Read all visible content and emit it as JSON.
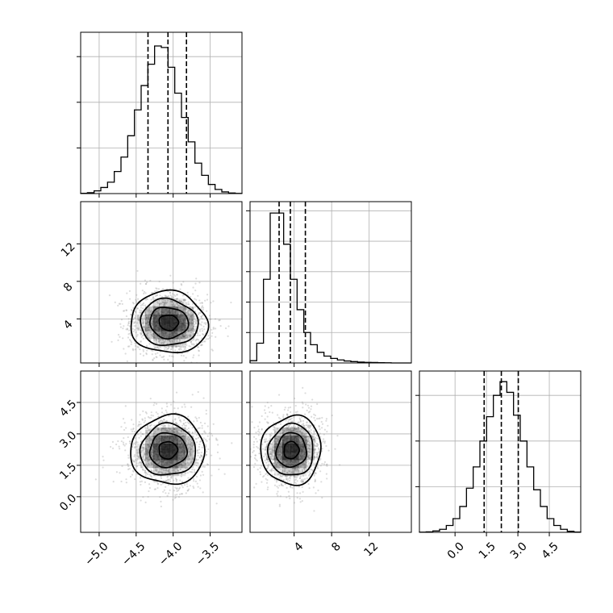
{
  "chart_data": {
    "type": "corner",
    "parameters": [
      {
        "range": [
          -5.25,
          -3.07
        ],
        "ticks": [
          -5.0,
          -4.5,
          -4.0,
          -3.5
        ],
        "tick_labels": [
          "−5.0",
          "−4.5",
          "−4.0",
          "−3.5"
        ],
        "quantiles": [
          -4.34,
          -4.07,
          -3.82
        ],
        "hist_bins": [
          0.002,
          0.006,
          0.018,
          0.04,
          0.075,
          0.145,
          0.24,
          0.38,
          0.55,
          0.71,
          0.85,
          0.97,
          0.96,
          0.83,
          0.66,
          0.5,
          0.34,
          0.2,
          0.12,
          0.06,
          0.027,
          0.011,
          0.004,
          0.001
        ],
        "hist_ymax": 1.06,
        "hist_ticks": [
          0.0,
          0.3,
          0.6,
          0.9
        ]
      },
      {
        "range": [
          -0.7,
          16.5
        ],
        "ticks": [
          4,
          8,
          12
        ],
        "tick_labels": [
          "4",
          "8",
          "12"
        ],
        "quantiles": [
          2.4,
          3.6,
          5.2
        ],
        "hist_bins": [
          0.015,
          0.13,
          0.55,
          0.985,
          0.985,
          0.78,
          0.55,
          0.35,
          0.2,
          0.12,
          0.07,
          0.045,
          0.03,
          0.02,
          0.013,
          0.009,
          0.006,
          0.004,
          0.003,
          0.002,
          0.001,
          0.0,
          0.0,
          0.0
        ],
        "hist_ymax": 1.06,
        "hist_ticks": [
          0.0,
          0.2,
          0.4,
          0.6,
          0.8,
          1.0
        ]
      },
      {
        "range": [
          -1.7,
          6.0
        ],
        "ticks": [
          0.0,
          1.5,
          3.0,
          4.5
        ],
        "tick_labels": [
          "0.0",
          "1.5",
          "3.0",
          "4.5"
        ],
        "quantiles": [
          1.39,
          2.21,
          3.02
        ],
        "hist_bins": [
          0.001,
          0.003,
          0.009,
          0.02,
          0.045,
          0.09,
          0.17,
          0.29,
          0.43,
          0.6,
          0.76,
          0.9,
          0.99,
          0.92,
          0.77,
          0.6,
          0.43,
          0.28,
          0.17,
          0.09,
          0.045,
          0.02,
          0.007,
          0.002
        ],
        "hist_ymax": 1.06,
        "hist_ticks": [
          0.0,
          0.3,
          0.6,
          0.9
        ]
      }
    ],
    "pairs": [
      {
        "x": 0,
        "y": 1,
        "center": [
          -4.06,
          3.6
        ],
        "sigma": [
          0.26,
          1.65
        ],
        "rho": -0.05
      },
      {
        "x": 0,
        "y": 2,
        "center": [
          -4.07,
          2.22
        ],
        "sigma": [
          0.25,
          0.82
        ],
        "rho": 0.02
      },
      {
        "x": 1,
        "y": 2,
        "center": [
          3.7,
          2.22
        ],
        "sigma": [
          1.6,
          0.82
        ],
        "rho": 0.03
      }
    ],
    "contour_levels": [
      0.5,
      1.0,
      1.5,
      2.0
    ],
    "grid": true,
    "title": "",
    "xlabel": "",
    "ylabel": ""
  },
  "colors": {
    "line": "#000000",
    "grid": "#b0b0b0",
    "scatter": "#9a9a9a",
    "density": "#000000"
  }
}
